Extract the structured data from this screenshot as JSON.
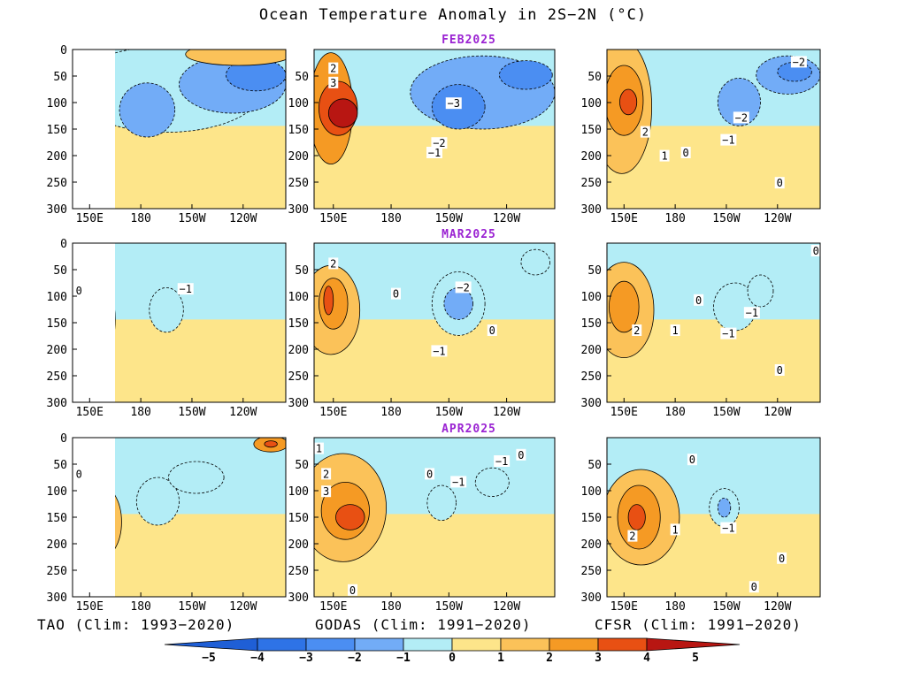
{
  "chart_data": {
    "type": "heatmap",
    "title": "Ocean Temperature Anomaly in 2S−2N (°C)",
    "months": [
      "FEB2025",
      "MAR2025",
      "APR2025"
    ],
    "sources": [
      "TAO (Clim: 1993−2020)",
      "GODAS (Clim: 1991−2020)",
      "CFSR (Clim: 1991−2020)"
    ],
    "x_ticks": [
      "150E",
      "180",
      "150W",
      "120W"
    ],
    "y_ticks_full": [
      "0",
      "50",
      "100",
      "150",
      "200",
      "250",
      "300"
    ],
    "y_ticks_short": [
      "50",
      "100",
      "150",
      "200",
      "250",
      "300"
    ],
    "ylim": [
      300,
      0
    ],
    "colorbar": {
      "labels": [
        "−5",
        "−4",
        "−3",
        "−2",
        "−1",
        "0",
        "1",
        "2",
        "3",
        "4",
        "5"
      ],
      "colors": [
        "#1f5fd6",
        "#2e73e6",
        "#4b8ef2",
        "#72acf7",
        "#b3edf6",
        "#fde58a",
        "#fbc259",
        "#f59a24",
        "#e85013",
        "#b81612"
      ]
    },
    "panels": [
      {
        "contour_labels": [],
        "blobs": [
          {
            "cx": 0.06,
            "cy": 0.48,
            "rx": 0.1,
            "ry": 0.32,
            "c": 6
          },
          {
            "cx": 0.07,
            "cy": 0.48,
            "rx": 0.05,
            "ry": 0.2,
            "c": 7
          },
          {
            "cx": 0.44,
            "cy": 0.25,
            "rx": 0.45,
            "ry": 0.27,
            "c": 4
          },
          {
            "cx": 0.35,
            "cy": 0.38,
            "rx": 0.13,
            "ry": 0.17,
            "c": 3
          },
          {
            "cx": 0.75,
            "cy": 0.22,
            "rx": 0.25,
            "ry": 0.18,
            "c": 3
          },
          {
            "cx": 0.86,
            "cy": 0.16,
            "rx": 0.14,
            "ry": 0.1,
            "c": 2
          },
          {
            "cx": 0.78,
            "cy": 0.03,
            "rx": 0.25,
            "ry": 0.07,
            "c": 6
          }
        ]
      },
      {
        "contour_labels": [
          {
            "t": "2",
            "x": 0.08,
            "y": 0.12
          },
          {
            "t": "3",
            "x": 0.08,
            "y": 0.21
          },
          {
            "t": "−3",
            "x": 0.58,
            "y": 0.34
          },
          {
            "t": "−2",
            "x": 0.52,
            "y": 0.59
          },
          {
            "t": "−1",
            "x": 0.5,
            "y": 0.65
          }
        ],
        "blobs": [
          {
            "cx": 0.07,
            "cy": 0.37,
            "rx": 0.09,
            "ry": 0.35,
            "c": 7
          },
          {
            "cx": 0.1,
            "cy": 0.37,
            "rx": 0.08,
            "ry": 0.17,
            "c": 8
          },
          {
            "cx": 0.12,
            "cy": 0.4,
            "rx": 0.06,
            "ry": 0.09,
            "c": 9
          },
          {
            "cx": 0.7,
            "cy": 0.27,
            "rx": 0.3,
            "ry": 0.23,
            "c": 3
          },
          {
            "cx": 0.6,
            "cy": 0.36,
            "rx": 0.11,
            "ry": 0.14,
            "c": 2
          },
          {
            "cx": 0.88,
            "cy": 0.16,
            "rx": 0.11,
            "ry": 0.09,
            "c": 2
          }
        ]
      },
      {
        "contour_labels": [
          {
            "t": "−2",
            "x": 0.9,
            "y": 0.08
          },
          {
            "t": "−2",
            "x": 0.63,
            "y": 0.43
          },
          {
            "t": "−1",
            "x": 0.57,
            "y": 0.57
          },
          {
            "t": "2",
            "x": 0.18,
            "y": 0.52
          },
          {
            "t": "0",
            "x": 0.37,
            "y": 0.65
          },
          {
            "t": "1",
            "x": 0.27,
            "y": 0.67
          },
          {
            "t": "0",
            "x": 0.81,
            "y": 0.84
          }
        ],
        "blobs": [
          {
            "cx": 0.07,
            "cy": 0.36,
            "rx": 0.14,
            "ry": 0.42,
            "c": 6
          },
          {
            "cx": 0.08,
            "cy": 0.32,
            "rx": 0.09,
            "ry": 0.22,
            "c": 7
          },
          {
            "cx": 0.1,
            "cy": 0.33,
            "rx": 0.04,
            "ry": 0.08,
            "c": 8
          },
          {
            "cx": 0.85,
            "cy": 0.16,
            "rx": 0.15,
            "ry": 0.12,
            "c": 3
          },
          {
            "cx": 0.88,
            "cy": 0.14,
            "rx": 0.08,
            "ry": 0.06,
            "c": 2
          },
          {
            "cx": 0.62,
            "cy": 0.33,
            "rx": 0.1,
            "ry": 0.15,
            "c": 3
          }
        ]
      },
      {
        "contour_labels": [
          {
            "t": "0",
            "x": 0.03,
            "y": 0.3
          },
          {
            "t": "−1",
            "x": 0.53,
            "y": 0.29
          }
        ],
        "blobs": [
          {
            "cx": 0.1,
            "cy": 0.48,
            "rx": 0.1,
            "ry": 0.28,
            "c": 6
          },
          {
            "cx": 0.08,
            "cy": 0.43,
            "rx": 0.05,
            "ry": 0.13,
            "c": 6
          },
          {
            "cx": 0.44,
            "cy": 0.42,
            "rx": 0.08,
            "ry": 0.14,
            "c": 4
          }
        ]
      },
      {
        "contour_labels": [
          {
            "t": "2",
            "x": 0.08,
            "y": 0.13
          },
          {
            "t": "0",
            "x": 0.34,
            "y": 0.32
          },
          {
            "t": "−2",
            "x": 0.62,
            "y": 0.28
          },
          {
            "t": "−1",
            "x": 0.52,
            "y": 0.68
          },
          {
            "t": "0",
            "x": 0.74,
            "y": 0.55
          }
        ],
        "blobs": [
          {
            "cx": 0.07,
            "cy": 0.42,
            "rx": 0.12,
            "ry": 0.28,
            "c": 6
          },
          {
            "cx": 0.08,
            "cy": 0.38,
            "rx": 0.06,
            "ry": 0.16,
            "c": 7
          },
          {
            "cx": 0.06,
            "cy": 0.36,
            "rx": 0.02,
            "ry": 0.09,
            "c": 8
          },
          {
            "cx": 0.6,
            "cy": 0.38,
            "rx": 0.11,
            "ry": 0.2,
            "c": 4
          },
          {
            "cx": 0.6,
            "cy": 0.38,
            "rx": 0.06,
            "ry": 0.1,
            "c": 3
          },
          {
            "cx": 0.92,
            "cy": 0.12,
            "rx": 0.06,
            "ry": 0.08,
            "c": 4
          }
        ]
      },
      {
        "contour_labels": [
          {
            "t": "0",
            "x": 0.98,
            "y": 0.05
          },
          {
            "t": "0",
            "x": 0.43,
            "y": 0.36
          },
          {
            "t": "−1",
            "x": 0.68,
            "y": 0.44
          },
          {
            "t": "−1",
            "x": 0.57,
            "y": 0.57
          },
          {
            "t": "1",
            "x": 0.32,
            "y": 0.55
          },
          {
            "t": "2",
            "x": 0.14,
            "y": 0.55
          },
          {
            "t": "0",
            "x": 0.81,
            "y": 0.8
          }
        ],
        "blobs": [
          {
            "cx": 0.08,
            "cy": 0.42,
            "rx": 0.14,
            "ry": 0.3,
            "c": 6
          },
          {
            "cx": 0.08,
            "cy": 0.4,
            "rx": 0.07,
            "ry": 0.16,
            "c": 7
          },
          {
            "cx": 0.6,
            "cy": 0.4,
            "rx": 0.1,
            "ry": 0.15,
            "c": 4
          },
          {
            "cx": 0.72,
            "cy": 0.3,
            "rx": 0.06,
            "ry": 0.1,
            "c": 4
          }
        ]
      },
      {
        "contour_labels": [
          {
            "t": "0",
            "x": 0.03,
            "y": 0.23
          }
        ],
        "blobs": [
          {
            "cx": 0.12,
            "cy": 0.53,
            "rx": 0.11,
            "ry": 0.24,
            "c": 6
          },
          {
            "cx": 0.1,
            "cy": 0.53,
            "rx": 0.06,
            "ry": 0.12,
            "c": 7
          },
          {
            "cx": 0.4,
            "cy": 0.4,
            "rx": 0.1,
            "ry": 0.15,
            "c": 4
          },
          {
            "cx": 0.58,
            "cy": 0.25,
            "rx": 0.13,
            "ry": 0.1,
            "c": 4
          },
          {
            "cx": 0.93,
            "cy": 0.04,
            "rx": 0.08,
            "ry": 0.05,
            "c": 7
          },
          {
            "cx": 0.93,
            "cy": 0.04,
            "rx": 0.03,
            "ry": 0.02,
            "c": 8
          }
        ]
      },
      {
        "contour_labels": [
          {
            "t": "1",
            "x": 0.02,
            "y": 0.07
          },
          {
            "t": "2",
            "x": 0.05,
            "y": 0.23
          },
          {
            "t": "3",
            "x": 0.05,
            "y": 0.34
          },
          {
            "t": "0",
            "x": 0.48,
            "y": 0.23
          },
          {
            "t": "−1",
            "x": 0.6,
            "y": 0.28
          },
          {
            "t": "−1",
            "x": 0.78,
            "y": 0.15
          },
          {
            "t": "0",
            "x": 0.86,
            "y": 0.11
          },
          {
            "t": "0",
            "x": 0.16,
            "y": 0.96
          }
        ],
        "blobs": [
          {
            "cx": 0.12,
            "cy": 0.44,
            "rx": 0.18,
            "ry": 0.34,
            "c": 6
          },
          {
            "cx": 0.13,
            "cy": 0.46,
            "rx": 0.1,
            "ry": 0.18,
            "c": 7
          },
          {
            "cx": 0.15,
            "cy": 0.5,
            "rx": 0.06,
            "ry": 0.08,
            "c": 8
          },
          {
            "cx": 0.53,
            "cy": 0.41,
            "rx": 0.06,
            "ry": 0.11,
            "c": 4
          },
          {
            "cx": 0.74,
            "cy": 0.28,
            "rx": 0.07,
            "ry": 0.09,
            "c": 4
          }
        ]
      },
      {
        "contour_labels": [
          {
            "t": "0",
            "x": 0.4,
            "y": 0.14
          },
          {
            "t": "2",
            "x": 0.12,
            "y": 0.62
          },
          {
            "t": "1",
            "x": 0.32,
            "y": 0.58
          },
          {
            "t": "−1",
            "x": 0.57,
            "y": 0.57
          },
          {
            "t": "0",
            "x": 0.82,
            "y": 0.76
          },
          {
            "t": "0",
            "x": 0.69,
            "y": 0.94
          }
        ],
        "blobs": [
          {
            "cx": 0.16,
            "cy": 0.5,
            "rx": 0.18,
            "ry": 0.3,
            "c": 6
          },
          {
            "cx": 0.15,
            "cy": 0.5,
            "rx": 0.1,
            "ry": 0.2,
            "c": 7
          },
          {
            "cx": 0.14,
            "cy": 0.5,
            "rx": 0.04,
            "ry": 0.08,
            "c": 8
          },
          {
            "cx": 0.55,
            "cy": 0.44,
            "rx": 0.07,
            "ry": 0.12,
            "c": 4
          },
          {
            "cx": 0.55,
            "cy": 0.44,
            "rx": 0.03,
            "ry": 0.06,
            "c": 3
          }
        ]
      }
    ]
  }
}
